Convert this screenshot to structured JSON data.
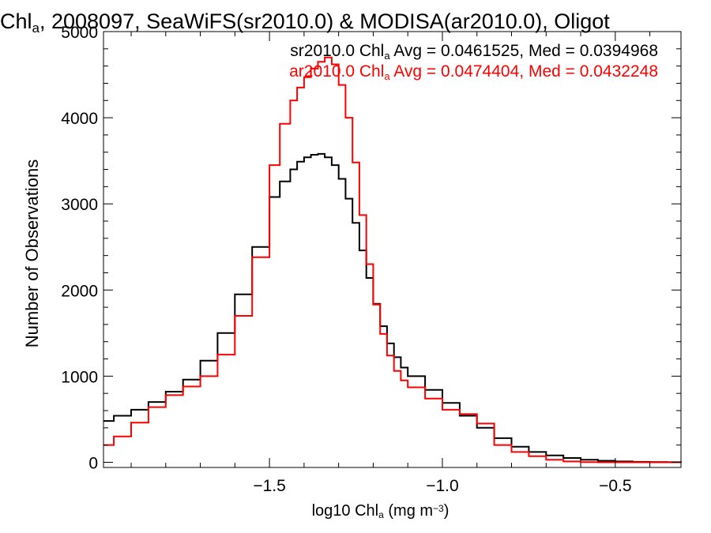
{
  "chart_data": {
    "type": "line",
    "step": true,
    "title": {
      "parts": [
        {
          "text": "Chl",
          "sub": false
        },
        {
          "text": "a",
          "sub": true
        },
        {
          "text": ", 2008097, SeaWiFS(sr2010.0) & MODISA(ar2010.0), Oligot",
          "sub": false
        }
      ]
    },
    "xlabel": {
      "parts": [
        {
          "text": "log10 Chl",
          "sub": false
        },
        {
          "text": "a",
          "sub": true
        },
        {
          "text": " (mg m",
          "sub": false
        },
        {
          "text": "−3",
          "sup": true
        },
        {
          "text": ")",
          "sub": false
        }
      ]
    },
    "ylabel": "Number of Observations",
    "xlim": [
      -1.98,
      -0.31
    ],
    "ylim": [
      -60,
      5000
    ],
    "xticks": [
      -1.5,
      -1.0,
      -0.5
    ],
    "xtick_labels": [
      "−1.5",
      "−1.0",
      "−0.5"
    ],
    "yticks": [
      0,
      1000,
      2000,
      3000,
      4000,
      5000
    ],
    "ytick_labels": [
      "0",
      "1000",
      "2000",
      "3000",
      "4000",
      "5000"
    ],
    "grid": false,
    "legend_position": "top-right",
    "series": [
      {
        "color": "#000000",
        "stats_parts": [
          {
            "text": "sr2010.0 Chl",
            "sub": false
          },
          {
            "text": "a",
            "sub": true
          },
          {
            "text": " Avg = 0.0461525, Med = 0.0394968",
            "sub": false
          }
        ],
        "x": [
          -1.98,
          -1.95,
          -1.9,
          -1.85,
          -1.8,
          -1.75,
          -1.7,
          -1.65,
          -1.6,
          -1.55,
          -1.5,
          -1.47,
          -1.44,
          -1.42,
          -1.4,
          -1.38,
          -1.36,
          -1.34,
          -1.32,
          -1.3,
          -1.28,
          -1.26,
          -1.24,
          -1.22,
          -1.2,
          -1.18,
          -1.16,
          -1.14,
          -1.12,
          -1.1,
          -1.05,
          -1.0,
          -0.95,
          -0.9,
          -0.85,
          -0.8,
          -0.75,
          -0.7,
          -0.65,
          -0.6,
          -0.55,
          -0.5,
          -0.45,
          -0.4,
          -0.35,
          -0.31
        ],
        "y": [
          480,
          540,
          610,
          700,
          820,
          960,
          1180,
          1500,
          1950,
          2500,
          3080,
          3260,
          3400,
          3490,
          3540,
          3570,
          3580,
          3540,
          3450,
          3290,
          3060,
          2780,
          2460,
          2140,
          1840,
          1580,
          1380,
          1220,
          1100,
          1000,
          840,
          690,
          540,
          400,
          280,
          180,
          120,
          80,
          50,
          30,
          18,
          10,
          5,
          3,
          1,
          0
        ]
      },
      {
        "color": "#ff0000",
        "stats_parts": [
          {
            "text": "ar2010.0 Chl",
            "sub": false
          },
          {
            "text": "a",
            "sub": true
          },
          {
            "text": " Avg = 0.0474404, Med = 0.0432248",
            "sub": false
          }
        ],
        "x": [
          -1.98,
          -1.95,
          -1.9,
          -1.85,
          -1.8,
          -1.75,
          -1.7,
          -1.65,
          -1.6,
          -1.55,
          -1.5,
          -1.47,
          -1.44,
          -1.42,
          -1.4,
          -1.38,
          -1.36,
          -1.34,
          -1.32,
          -1.3,
          -1.28,
          -1.26,
          -1.24,
          -1.22,
          -1.2,
          -1.18,
          -1.16,
          -1.14,
          -1.12,
          -1.1,
          -1.05,
          -1.0,
          -0.95,
          -0.9,
          -0.85,
          -0.8,
          -0.75,
          -0.7,
          -0.65,
          -0.6,
          -0.55,
          -0.5,
          -0.45,
          -0.4,
          -0.35,
          -0.31
        ],
        "y": [
          200,
          300,
          460,
          640,
          780,
          880,
          1000,
          1250,
          1700,
          2380,
          3450,
          3930,
          4200,
          4350,
          4470,
          4570,
          4650,
          4700,
          4620,
          4380,
          4000,
          3480,
          2870,
          2300,
          1830,
          1490,
          1240,
          1060,
          950,
          870,
          740,
          610,
          560,
          450,
          200,
          120,
          70,
          30,
          10,
          2,
          0,
          0,
          0,
          0,
          0,
          0
        ]
      }
    ]
  }
}
